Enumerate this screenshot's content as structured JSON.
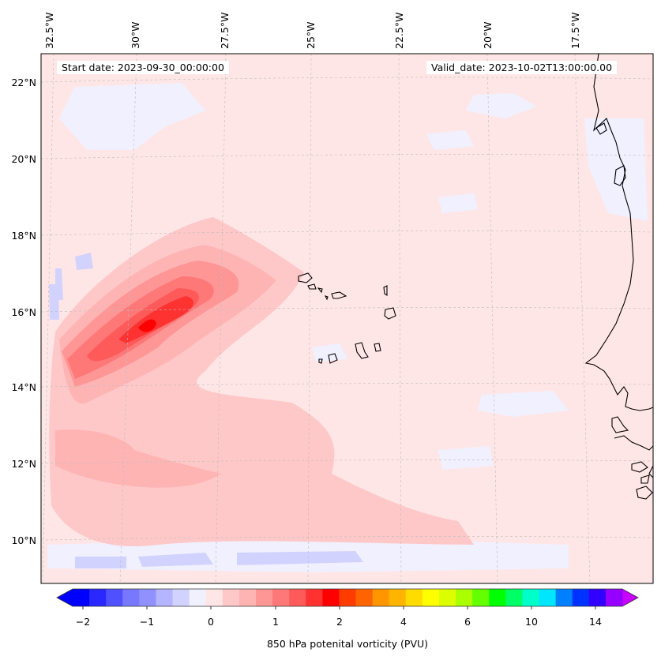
{
  "header": {
    "start_date": "Start date: 2023-09-30_00:00:00",
    "valid_date": "Valid_date: 2023-10-02T13:00:00.00"
  },
  "map": {
    "longitude_labels": [
      "32.5°W",
      "30°W",
      "27.5°W",
      "25°W",
      "22.5°W",
      "20°W",
      "17.5°W"
    ],
    "latitude_labels": [
      "22°N",
      "20°N",
      "18°N",
      "16°N",
      "14°N",
      "12°N",
      "10°N"
    ],
    "background_fill": "#ffe6e6"
  },
  "colorbar": {
    "label": "850 hPa potenital vorticity (PVU)",
    "tick_labels": [
      "−2",
      "−1",
      "0",
      "1",
      "2",
      "4",
      "6",
      "10",
      "14"
    ],
    "colors": [
      "#0000ff",
      "#2828ff",
      "#5050ff",
      "#7878ff",
      "#9090ff",
      "#b4b4ff",
      "#d2d2ff",
      "#f0f0ff",
      "#ffe6e6",
      "#ffc8c8",
      "#ffb4b4",
      "#ff9696",
      "#ff7878",
      "#ff5a5a",
      "#ff3232",
      "#ff0000",
      "#ff3c00",
      "#ff6400",
      "#ff9600",
      "#ffb400",
      "#ffdc00",
      "#ffff00",
      "#dcff00",
      "#aaff00",
      "#64ff00",
      "#00ff00",
      "#00ff64",
      "#00ffc8",
      "#00e6ff",
      "#0080ff",
      "#0032ff",
      "#3200ff",
      "#9600ff"
    ],
    "extend_min_color": "#0000ff",
    "extend_max_color": "#c800ff"
  }
}
